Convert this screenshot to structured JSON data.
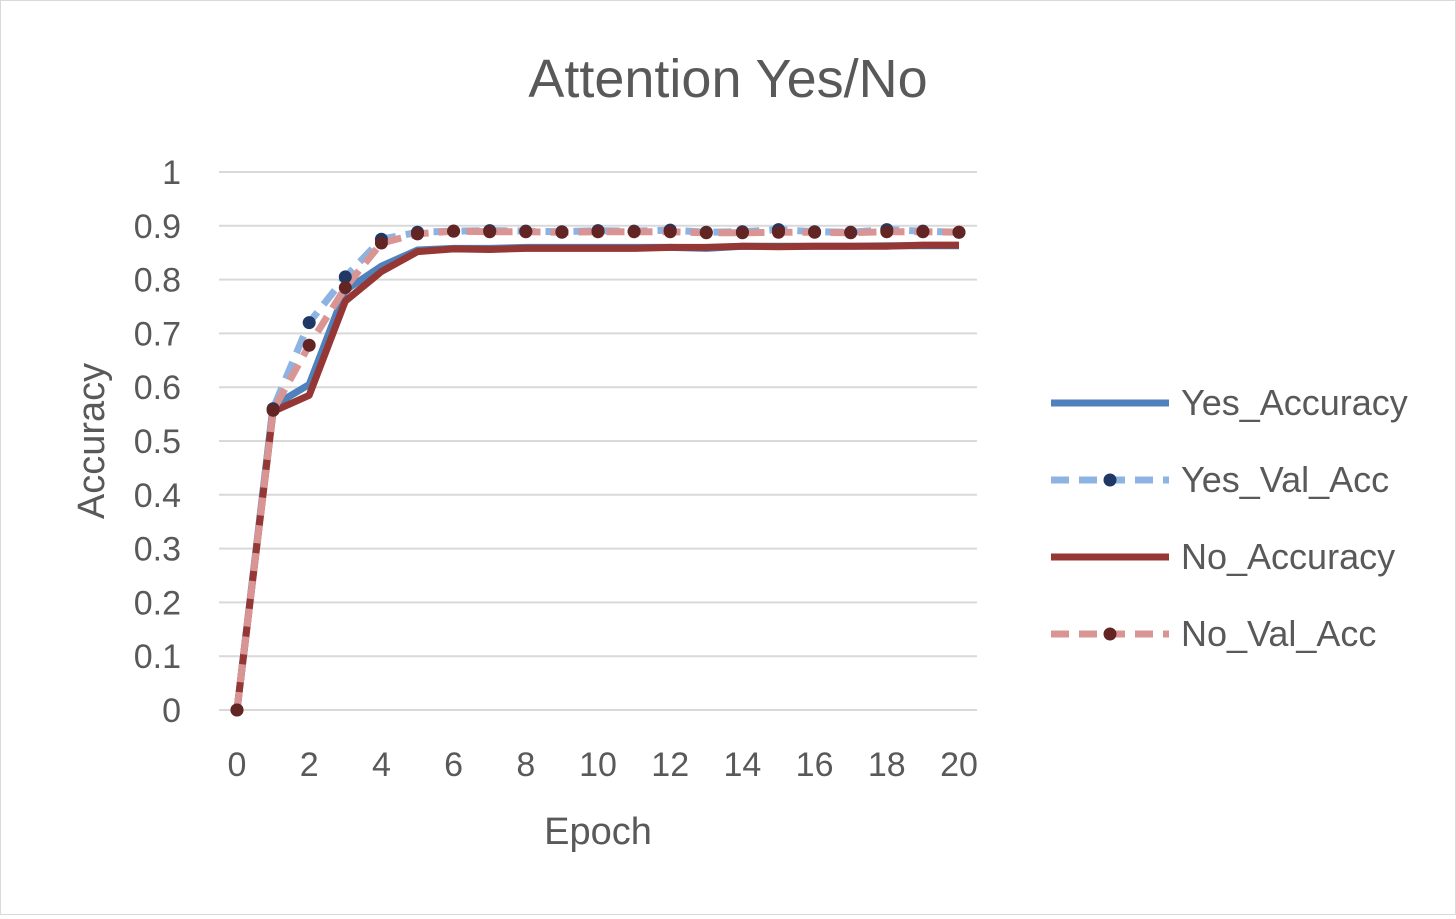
{
  "chart_data": {
    "type": "line",
    "title": "Attention Yes/No",
    "xlabel": "Epoch",
    "ylabel": "Accuracy",
    "xlim": [
      0,
      20
    ],
    "ylim": [
      0,
      1
    ],
    "xticks": [
      "0",
      "2",
      "4",
      "6",
      "8",
      "10",
      "12",
      "14",
      "16",
      "18",
      "20"
    ],
    "yticks": [
      "0",
      "0.1",
      "0.2",
      "0.3",
      "0.4",
      "0.5",
      "0.6",
      "0.7",
      "0.8",
      "0.9",
      "1"
    ],
    "grid": true,
    "legend_position": "right",
    "x": [
      0,
      1,
      2,
      3,
      4,
      5,
      6,
      7,
      8,
      9,
      10,
      11,
      12,
      13,
      14,
      15,
      16,
      17,
      18,
      19,
      20
    ],
    "series": [
      {
        "name": "Yes_Accuracy",
        "color": "#4f81bd",
        "style": "solid",
        "markers": false,
        "values": [
          0,
          0.565,
          0.605,
          0.78,
          0.825,
          0.855,
          0.858,
          0.858,
          0.86,
          0.86,
          0.86,
          0.86,
          0.86,
          0.858,
          0.862,
          0.862,
          0.862,
          0.862,
          0.863,
          0.863,
          0.863
        ]
      },
      {
        "name": "Yes_Val_Acc",
        "color": "#8db3e2",
        "marker_color": "#1f3864",
        "style": "dashed",
        "markers": true,
        "values": [
          0,
          0.56,
          0.72,
          0.805,
          0.875,
          0.888,
          0.89,
          0.891,
          0.89,
          0.889,
          0.891,
          0.89,
          0.892,
          0.888,
          0.889,
          0.893,
          0.889,
          0.888,
          0.893,
          0.89,
          0.888
        ]
      },
      {
        "name": "No_Accuracy",
        "color": "#953735",
        "style": "solid",
        "markers": false,
        "values": [
          0,
          0.555,
          0.585,
          0.76,
          0.815,
          0.852,
          0.857,
          0.856,
          0.858,
          0.858,
          0.858,
          0.858,
          0.86,
          0.86,
          0.862,
          0.861,
          0.862,
          0.862,
          0.862,
          0.864,
          0.864
        ]
      },
      {
        "name": "No_Val_Acc",
        "color": "#d99594",
        "marker_color": "#632523",
        "style": "dashed",
        "markers": true,
        "values": [
          0,
          0.557,
          0.678,
          0.785,
          0.868,
          0.885,
          0.89,
          0.889,
          0.889,
          0.888,
          0.889,
          0.889,
          0.889,
          0.887,
          0.887,
          0.888,
          0.888,
          0.887,
          0.889,
          0.889,
          0.888
        ]
      }
    ]
  }
}
